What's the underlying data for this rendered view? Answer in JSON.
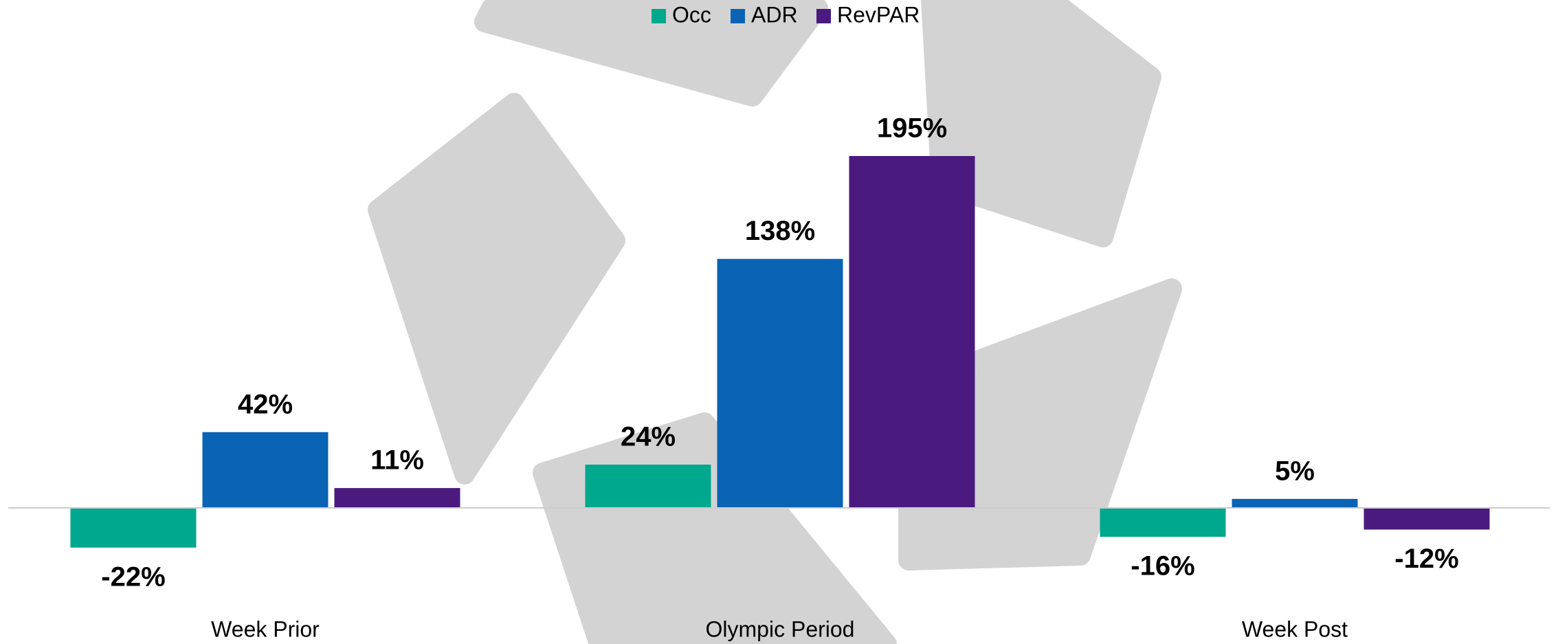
{
  "chart_data": {
    "type": "bar",
    "categories": [
      "Week Prior",
      "Olympic Period",
      "Week Post"
    ],
    "series": [
      {
        "name": "Occ",
        "color": "#00a88e",
        "values": [
          -22,
          24,
          -16
        ],
        "value_labels": [
          "-22%",
          "24%",
          "-16%"
        ]
      },
      {
        "name": "ADR",
        "color": "#0a63b4",
        "values": [
          42,
          138,
          5
        ],
        "value_labels": [
          "42%",
          "138%",
          "5%"
        ]
      },
      {
        "name": "RevPAR",
        "color": "#4a1a7e",
        "values": [
          11,
          195,
          -12
        ],
        "value_labels": [
          "11%",
          "195%",
          "-12%"
        ]
      }
    ],
    "legend": "top"
  }
}
